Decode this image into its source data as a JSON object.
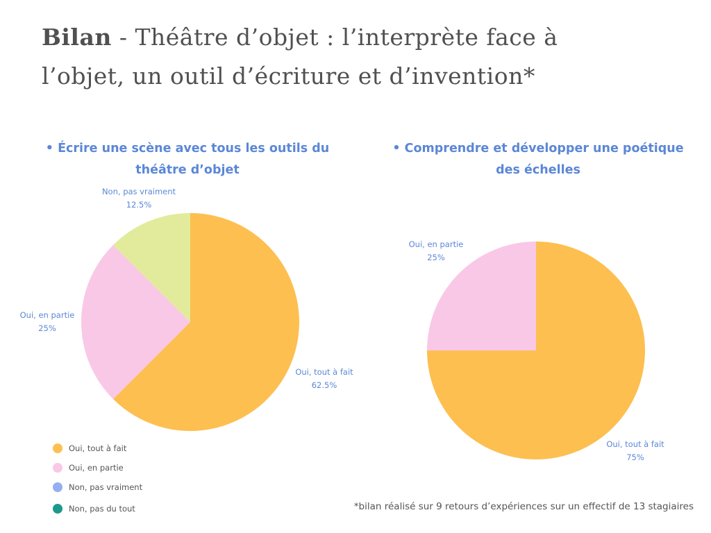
{
  "title": {
    "bold": "Bilan",
    "rest": " - Théâtre d’objet : l’interprète face à l’objet, un outil d’écriture et d’invention*"
  },
  "footnote": "*bilan réalisé sur 9 retours d’expériences sur un effectif de 13 stagiaires",
  "legend": [
    {
      "label": "Oui, tout à fait",
      "color": "#fdbf50"
    },
    {
      "label": "Oui, en partie",
      "color": "#f9c8e6"
    },
    {
      "label": "Non, pas vraiment",
      "color": "#94aef4"
    },
    {
      "label": "Non, pas du tout",
      "color": "#1c998a"
    }
  ],
  "chart_data": [
    {
      "type": "pie",
      "title": "• Écrire une scène avec tous les outils du théâtre d’objet",
      "slices": [
        {
          "label": "Oui, tout à fait",
          "value": 62.5,
          "value_label": "62.5%",
          "color": "#fdbf50"
        },
        {
          "label": "Oui, en partie",
          "value": 25,
          "value_label": "25%",
          "color": "#f9c8e6"
        },
        {
          "label": "Non, pas vraiment",
          "value": 12.5,
          "value_label": "12.5%",
          "color": "#e1eb9b"
        }
      ]
    },
    {
      "type": "pie",
      "title": "• Comprendre et développer une poétique des échelles",
      "slices": [
        {
          "label": "Oui, tout à fait",
          "value": 75,
          "value_label": "75%",
          "color": "#fdbf50"
        },
        {
          "label": "Oui, en partie",
          "value": 25,
          "value_label": "25%",
          "color": "#f9c8e6"
        }
      ]
    }
  ]
}
